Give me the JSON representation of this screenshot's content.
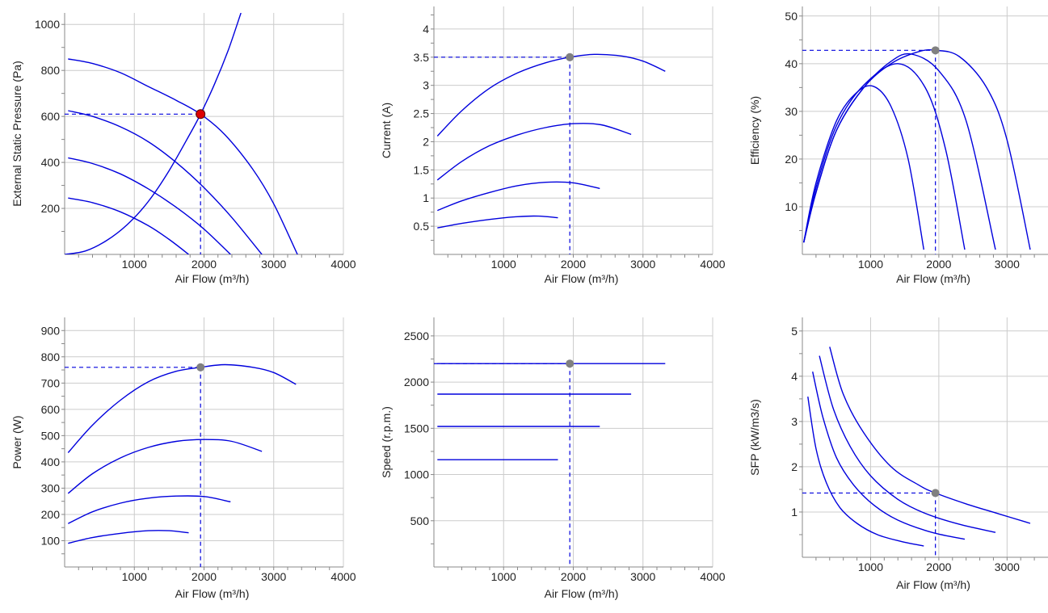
{
  "colors": {
    "curve": "#0000dd",
    "grid": "#cccccc",
    "axis": "#888888",
    "marker": "#808080",
    "marker_red": "#dd0000"
  },
  "chart_data": [
    {
      "type": "line",
      "xlabel": "Air Flow (m³/h)",
      "ylabel": "External Static Pressure (Pa)",
      "xlim": [
        0,
        4000
      ],
      "ylim": [
        0,
        1050
      ],
      "xticks": [
        1000,
        2000,
        3000,
        4000
      ],
      "xtick_labels": [
        "1000",
        "2000",
        "3000",
        "4000"
      ],
      "yticks": [
        200,
        400,
        600,
        800,
        1000
      ],
      "ytick_labels": [
        "200",
        "400",
        "600",
        "800",
        "1000"
      ],
      "grid": true,
      "series": [
        {
          "x": [
            50,
            400,
            800,
            1200,
            1600,
            1950,
            2300,
            2700,
            3000,
            3340
          ],
          "values": [
            850,
            830,
            790,
            730,
            670,
            610,
            520,
            370,
            220,
            0
          ]
        },
        {
          "x": [
            50,
            400,
            800,
            1200,
            1600,
            2000,
            2400,
            2830
          ],
          "values": [
            625,
            600,
            555,
            490,
            400,
            290,
            160,
            0
          ]
        },
        {
          "x": [
            50,
            400,
            800,
            1200,
            1600,
            2000,
            2380
          ],
          "values": [
            420,
            395,
            350,
            285,
            205,
            110,
            0
          ]
        },
        {
          "x": [
            50,
            400,
            800,
            1200,
            1500,
            1780
          ],
          "values": [
            245,
            225,
            185,
            125,
            65,
            0
          ]
        },
        {
          "x": [
            0,
            300,
            600,
            900,
            1200,
            1500,
            1800,
            1950,
            2150,
            2350,
            2530
          ],
          "values": [
            0,
            15,
            60,
            130,
            230,
            365,
            525,
            610,
            740,
            890,
            1050
          ]
        }
      ],
      "guide": {
        "x": 1950,
        "y": 610,
        "color": "red"
      }
    },
    {
      "type": "line",
      "xlabel": "Air Flow (m³/h)",
      "ylabel": "Current (A)",
      "xlim": [
        0,
        4000
      ],
      "ylim": [
        0,
        4.4
      ],
      "xticks": [
        1000,
        2000,
        3000,
        4000
      ],
      "xtick_labels": [
        "1000",
        "2000",
        "3000",
        "4000"
      ],
      "yticks": [
        0.5,
        1,
        1.5,
        2,
        2.5,
        3,
        3.5,
        4
      ],
      "ytick_labels": [
        "0.5",
        "1",
        "1.5",
        "2",
        "2.5",
        "3",
        "3.5",
        "4"
      ],
      "grid": true,
      "series": [
        {
          "x": [
            50,
            400,
            800,
            1200,
            1600,
            1950,
            2300,
            2700,
            3000,
            3320
          ],
          "values": [
            2.1,
            2.55,
            2.95,
            3.22,
            3.4,
            3.5,
            3.55,
            3.52,
            3.43,
            3.25
          ]
        },
        {
          "x": [
            50,
            400,
            800,
            1200,
            1600,
            2000,
            2400,
            2830
          ],
          "values": [
            1.32,
            1.65,
            1.93,
            2.12,
            2.25,
            2.32,
            2.3,
            2.13
          ]
        },
        {
          "x": [
            50,
            400,
            800,
            1200,
            1600,
            2000,
            2380
          ],
          "values": [
            0.78,
            0.95,
            1.1,
            1.22,
            1.28,
            1.27,
            1.17
          ]
        },
        {
          "x": [
            50,
            400,
            800,
            1200,
            1500,
            1780
          ],
          "values": [
            0.47,
            0.55,
            0.62,
            0.67,
            0.68,
            0.65
          ]
        }
      ],
      "guide": {
        "x": 1950,
        "y": 3.5,
        "color": "gray"
      }
    },
    {
      "type": "line",
      "xlabel": "Air Flow (m³/h)",
      "ylabel": "Efficiency (%)",
      "xlim": [
        0,
        3600
      ],
      "ylim": [
        0,
        52
      ],
      "xticks": [
        1000,
        2000,
        3000
      ],
      "xtick_labels": [
        "1000",
        "2000",
        "3000"
      ],
      "yticks": [
        10,
        20,
        30,
        40,
        50
      ],
      "ytick_labels": [
        "10",
        "20",
        "30",
        "40",
        "50"
      ],
      "grid": true,
      "series": [
        {
          "x": [
            20,
            200,
            500,
            900,
            1300,
            1700,
            1950,
            2300,
            2700,
            3000,
            3340
          ],
          "values": [
            2.5,
            13,
            26,
            35,
            40,
            42.5,
            42.8,
            41.5,
            35,
            24,
            1
          ]
        },
        {
          "x": [
            20,
            200,
            500,
            900,
            1300,
            1600,
            2000,
            2400,
            2830
          ],
          "values": [
            2.5,
            13,
            26,
            35,
            40.5,
            42,
            38.5,
            28,
            1
          ]
        },
        {
          "x": [
            20,
            200,
            500,
            900,
            1400,
            1800,
            2100,
            2380
          ],
          "values": [
            2.5,
            14,
            27,
            35.5,
            40,
            35,
            22,
            1
          ]
        },
        {
          "x": [
            20,
            200,
            500,
            800,
            1050,
            1300,
            1550,
            1780
          ],
          "values": [
            2.5,
            15,
            28,
            34,
            35.2,
            31,
            20,
            1
          ]
        }
      ],
      "guide": {
        "x": 1950,
        "y": 42.8,
        "color": "gray"
      }
    },
    {
      "type": "line",
      "xlabel": "Air Flow (m³/h)",
      "ylabel": "Power (W)",
      "xlim": [
        0,
        4000
      ],
      "ylim": [
        0,
        950
      ],
      "xticks": [
        1000,
        2000,
        3000,
        4000
      ],
      "xtick_labels": [
        "1000",
        "2000",
        "3000",
        "4000"
      ],
      "yticks": [
        100,
        200,
        300,
        400,
        500,
        600,
        700,
        800,
        900
      ],
      "ytick_labels": [
        "100",
        "200",
        "300",
        "400",
        "500",
        "600",
        "700",
        "800",
        "900"
      ],
      "grid": true,
      "series": [
        {
          "x": [
            50,
            400,
            800,
            1200,
            1600,
            1950,
            2300,
            2700,
            3000,
            3320
          ],
          "values": [
            435,
            540,
            635,
            705,
            745,
            760,
            770,
            760,
            740,
            695
          ]
        },
        {
          "x": [
            50,
            400,
            800,
            1200,
            1600,
            2000,
            2400,
            2830
          ],
          "values": [
            280,
            355,
            415,
            455,
            478,
            485,
            478,
            440
          ]
        },
        {
          "x": [
            50,
            400,
            800,
            1200,
            1600,
            2000,
            2380
          ],
          "values": [
            165,
            210,
            243,
            262,
            270,
            268,
            248
          ]
        },
        {
          "x": [
            50,
            400,
            800,
            1200,
            1500,
            1780
          ],
          "values": [
            90,
            112,
            128,
            138,
            138,
            130
          ]
        }
      ],
      "guide": {
        "x": 1950,
        "y": 760,
        "color": "gray"
      }
    },
    {
      "type": "line",
      "xlabel": "Air Flow (m³/h)",
      "ylabel": "Speed (r.p.m.)",
      "xlim": [
        0,
        4000
      ],
      "ylim": [
        0,
        2700
      ],
      "xticks": [
        1000,
        2000,
        3000,
        4000
      ],
      "xtick_labels": [
        "1000",
        "2000",
        "3000",
        "4000"
      ],
      "yticks": [
        500,
        1000,
        1500,
        2000,
        2500
      ],
      "ytick_labels": [
        "500",
        "1000",
        "1500",
        "2000",
        "2500"
      ],
      "grid": true,
      "series": [
        {
          "x": [
            50,
            3320
          ],
          "values": [
            2200,
            2200
          ]
        },
        {
          "x": [
            50,
            2830
          ],
          "values": [
            1870,
            1870
          ]
        },
        {
          "x": [
            50,
            2380
          ],
          "values": [
            1520,
            1520
          ]
        },
        {
          "x": [
            50,
            1780
          ],
          "values": [
            1160,
            1160
          ]
        }
      ],
      "guide": {
        "x": 1950,
        "y": 2200,
        "color": "gray"
      }
    },
    {
      "type": "line",
      "xlabel": "Air Flow (m³/h)",
      "ylabel": "SFP (kW/m3/s)",
      "xlim": [
        0,
        3600
      ],
      "ylim": [
        0,
        5.3
      ],
      "xticks": [
        1000,
        2000,
        3000
      ],
      "xtick_labels": [
        "1000",
        "2000",
        "3000"
      ],
      "yticks": [
        1,
        2,
        3,
        4,
        5
      ],
      "ytick_labels": [
        "1",
        "2",
        "3",
        "4",
        "5"
      ],
      "grid": true,
      "series": [
        {
          "x": [
            400,
            600,
            900,
            1300,
            1700,
            1950,
            2400,
            2900,
            3340
          ],
          "values": [
            4.65,
            3.6,
            2.75,
            2.0,
            1.6,
            1.42,
            1.18,
            0.95,
            0.75
          ]
        },
        {
          "x": [
            250,
            450,
            700,
            1000,
            1400,
            1800,
            2300,
            2830
          ],
          "values": [
            4.45,
            3.3,
            2.45,
            1.8,
            1.28,
            0.97,
            0.73,
            0.55
          ]
        },
        {
          "x": [
            150,
            300,
            500,
            750,
            1050,
            1400,
            1900,
            2380
          ],
          "values": [
            4.1,
            3.1,
            2.2,
            1.6,
            1.15,
            0.82,
            0.55,
            0.4
          ]
        },
        {
          "x": [
            80,
            200,
            350,
            550,
            800,
            1100,
            1450,
            1780
          ],
          "values": [
            3.55,
            2.4,
            1.65,
            1.1,
            0.75,
            0.5,
            0.35,
            0.25
          ]
        }
      ],
      "guide": {
        "x": 1950,
        "y": 1.42,
        "color": "gray"
      }
    }
  ]
}
